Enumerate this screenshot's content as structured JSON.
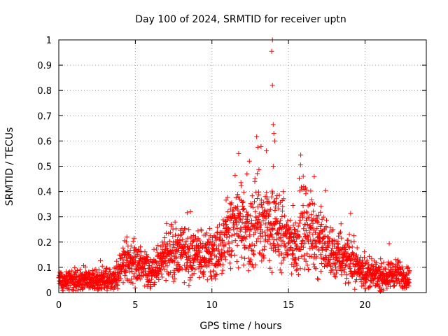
{
  "chart_data": {
    "type": "scatter",
    "title": "Day 100 of 2024, SRMTID for receiver uptn",
    "xlabel": "GPS time / hours",
    "ylabel": "SRMTID / TECUs",
    "xlim": [
      0,
      24
    ],
    "ylim": [
      0,
      1
    ],
    "xticks": [
      0,
      5,
      10,
      15,
      20
    ],
    "yticks": [
      0,
      0.1,
      0.2,
      0.3,
      0.4,
      0.5,
      0.6,
      0.7,
      0.8,
      0.9,
      1
    ],
    "grid": true,
    "marker": "plus",
    "point_color": "#ff0000",
    "x_range_of_points": [
      0,
      22.9
    ],
    "series": [
      {
        "name": "SRMTID",
        "approximate_trend": [
          [
            0.0,
            0.05
          ],
          [
            1.0,
            0.05
          ],
          [
            2.0,
            0.05
          ],
          [
            3.0,
            0.05
          ],
          [
            3.8,
            0.06
          ],
          [
            4.2,
            0.11
          ],
          [
            5.0,
            0.12
          ],
          [
            6.0,
            0.08
          ],
          [
            7.0,
            0.15
          ],
          [
            8.0,
            0.17
          ],
          [
            9.0,
            0.14
          ],
          [
            10.0,
            0.15
          ],
          [
            11.0,
            0.22
          ],
          [
            11.5,
            0.28
          ],
          [
            12.0,
            0.26
          ],
          [
            12.5,
            0.23
          ],
          [
            13.0,
            0.28
          ],
          [
            13.5,
            0.27
          ],
          [
            14.0,
            0.26
          ],
          [
            14.5,
            0.23
          ],
          [
            15.0,
            0.21
          ],
          [
            15.5,
            0.19
          ],
          [
            16.0,
            0.28
          ],
          [
            16.5,
            0.24
          ],
          [
            17.0,
            0.22
          ],
          [
            17.5,
            0.17
          ],
          [
            18.0,
            0.14
          ],
          [
            18.5,
            0.15
          ],
          [
            19.0,
            0.13
          ],
          [
            19.5,
            0.1
          ],
          [
            20.0,
            0.08
          ],
          [
            20.5,
            0.07
          ],
          [
            21.0,
            0.06
          ],
          [
            21.5,
            0.07
          ],
          [
            22.0,
            0.08
          ],
          [
            22.5,
            0.06
          ],
          [
            22.9,
            0.06
          ]
        ],
        "notable_points": [
          [
            13.95,
            1.0
          ],
          [
            13.9,
            0.955
          ],
          [
            13.95,
            0.82
          ],
          [
            14.0,
            0.665
          ],
          [
            14.05,
            0.63
          ],
          [
            14.1,
            0.6
          ],
          [
            13.0,
            0.575
          ],
          [
            11.75,
            0.55
          ],
          [
            14.0,
            0.5
          ],
          [
            12.45,
            0.52
          ],
          [
            16.0,
            0.41
          ],
          [
            8.6,
            0.32
          ],
          [
            21.0,
            0.005
          ]
        ]
      }
    ]
  }
}
